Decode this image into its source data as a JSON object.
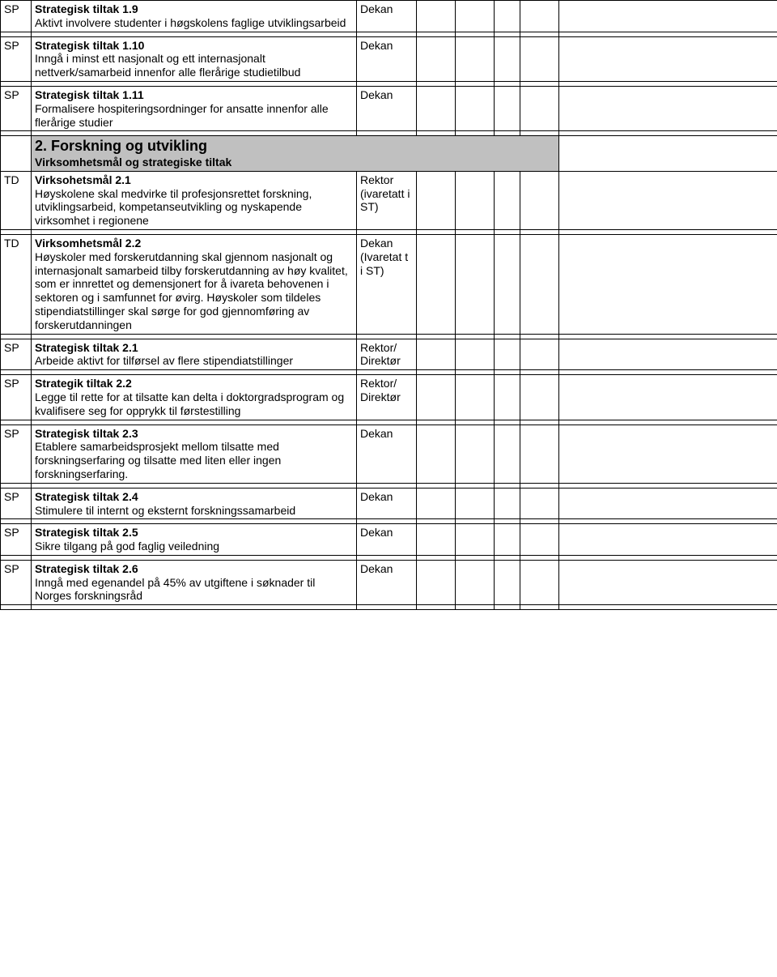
{
  "rows": [
    {
      "tag": "SP",
      "title": "Strategisk tiltak 1.9",
      "desc": "Aktivt involvere studenter i høgskolens faglige utviklingsarbeid",
      "resp": "Dekan"
    },
    {
      "tag": "SP",
      "title": "Strategisk tiltak 1.10",
      "desc": "Inngå i minst ett nasjonalt og ett internasjonalt nettverk/samarbeid innenfor alle flerårige studietilbud",
      "resp": "Dekan"
    },
    {
      "tag": "SP",
      "title": "Strategisk tiltak 1.11",
      "desc": "Formalisere hospiteringsordninger for ansatte innenfor alle flerårige studier",
      "resp": "Dekan"
    }
  ],
  "section2": {
    "header": "2. Forskning og utvikling",
    "subheader": "Virksomhetsmål og strategiske tiltak"
  },
  "td21": {
    "tag": "TD",
    "title": "Virksohetsmål 2.1",
    "desc": "Høyskolene skal medvirke til profesjonsrettet forskning, utviklingsarbeid, kompetanseutvikling og nyskapende virksomhet i regionene",
    "resp": "Rektor (ivaretatt i ST)"
  },
  "td22": {
    "tag": "TD",
    "title": "Virksomhetsmål 2.2",
    "desc": "Høyskoler med forskerutdanning skal gjennom nasjonalt og internasjonalt samarbeid tilby forskerutdanning av høy kvalitet, som er innrettet og demensjonert for å ivareta behovenen i sektoren og i samfunnet for øvirg. Høyskoler som tildeles stipendiatstillinger skal sørge for god gjennomføring av forskerutdanningen",
    "resp": "Dekan (Ivaretat t i ST)"
  },
  "sp_rows": [
    {
      "tag": "SP",
      "title": "Strategisk tiltak 2.1",
      "desc": "Arbeide aktivt for tilførsel av flere stipendiatstillinger",
      "resp": "Rektor/ Direktør"
    },
    {
      "tag": "SP",
      "title": "Strategik tiltak 2.2",
      "desc": "Legge til rette for at tilsatte kan delta i doktorgradsprogram og kvalifisere seg for opprykk til førstestilling",
      "resp": "Rektor/ Direktør"
    },
    {
      "tag": "SP",
      "title": "Strategisk tiltak 2.3",
      "desc": "Etablere samarbeidsprosjekt mellom tilsatte med forskningserfaring og tilsatte med liten eller ingen forskningserfaring.",
      "resp": "Dekan"
    },
    {
      "tag": "SP",
      "title": "Strategisk tiltak 2.4",
      "desc": "Stimulere til internt og eksternt forskningssamarbeid",
      "resp": "Dekan"
    },
    {
      "tag": "SP",
      "title": "Strategisk tiltak 2.5",
      "desc": "Sikre tilgang på god faglig veiledning",
      "resp": "Dekan"
    },
    {
      "tag": "SP",
      "title": "Strategisk tiltak 2.6",
      "desc": "Inngå med egenandel på 45% av utgiftene i søknader til Norges forskningsråd",
      "resp": "Dekan"
    }
  ]
}
